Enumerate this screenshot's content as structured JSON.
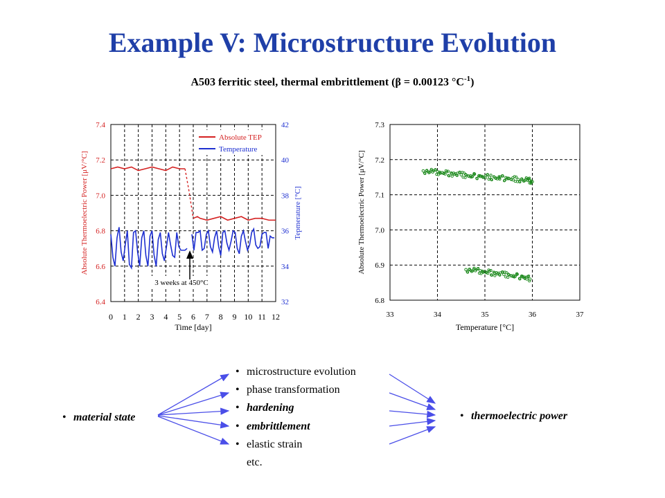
{
  "title": "Example V: Microstructure Evolution",
  "subtitle": "A503 ferritic steel, thermal embrittlement  (β = 0.00123 °C",
  "subtitle_sup": "-1",
  "subtitle_end": ")",
  "colors": {
    "title": "#1f3fa8",
    "tep": "#d42020",
    "temperature": "#1d2fd0",
    "scatter": "#1e8a1e",
    "arrows": "#4a4ee8"
  },
  "chart_data": [
    {
      "type": "line",
      "xlabel": "Time [day]",
      "ylabel": "Absolute Thermoelectric Power [μV/°C]",
      "y2label": "Tepmerature [°C]",
      "xlim": [
        0,
        12
      ],
      "ylim": [
        6.4,
        7.4
      ],
      "y2lim": [
        32,
        42
      ],
      "xticks": [
        "0",
        "1",
        "2",
        "3",
        "4",
        "5",
        "6",
        "7",
        "8",
        "9",
        "10",
        "11",
        "12"
      ],
      "yticks": [
        "6.4",
        "6.6",
        "6.8",
        "7.0",
        "7.2",
        "7.4"
      ],
      "y2ticks": [
        "32",
        "34",
        "36",
        "38",
        "40",
        "42"
      ],
      "grid": true,
      "legend_position": "top-right",
      "annotation": "3 weeks at 450°C",
      "series": [
        {
          "name": "Absolute TEP",
          "axis": "left",
          "x": [
            0,
            0.5,
            1,
            1.5,
            2,
            2.5,
            3,
            3.5,
            4,
            4.5,
            5,
            5.4,
            5.7,
            6.0,
            6.3,
            6.5,
            7,
            7.5,
            8,
            8.5,
            9,
            9.5,
            10,
            10.5,
            11,
            11.5,
            12
          ],
          "y": [
            7.15,
            7.16,
            7.15,
            7.16,
            7.14,
            7.15,
            7.16,
            7.15,
            7.14,
            7.16,
            7.15,
            7.15,
            7.02,
            6.87,
            6.88,
            6.87,
            6.86,
            6.87,
            6.88,
            6.86,
            6.87,
            6.88,
            6.86,
            6.87,
            6.87,
            6.86,
            6.86
          ]
        },
        {
          "name": "Temperature",
          "axis": "right",
          "x": [
            0,
            0.15,
            0.3,
            0.45,
            0.6,
            0.75,
            0.9,
            1.05,
            1.2,
            1.35,
            1.5,
            1.65,
            1.8,
            1.95,
            2.1,
            2.25,
            2.4,
            2.55,
            2.7,
            2.85,
            3.0,
            3.15,
            3.3,
            3.45,
            3.6,
            3.75,
            3.9,
            4.05,
            4.2,
            4.35,
            4.5,
            4.65,
            4.8,
            4.95,
            5.1,
            5.25,
            5.4,
            5.55,
            5.9,
            6.05,
            6.2,
            6.35,
            6.5,
            6.65,
            6.8,
            6.95,
            7.1,
            7.25,
            7.4,
            7.55,
            7.7,
            7.85,
            8.0,
            8.15,
            8.3,
            8.45,
            8.6,
            8.75,
            8.9,
            9.05,
            9.2,
            9.35,
            9.5,
            9.65,
            9.8,
            9.95,
            10.1,
            10.25,
            10.4,
            10.55,
            10.7,
            10.85,
            11.0,
            11.15,
            11.3,
            11.45,
            11.6,
            11.75,
            11.9
          ],
          "y": [
            35.8,
            34.5,
            34.0,
            35.6,
            36.2,
            34.8,
            34.3,
            35.2,
            36.0,
            34.1,
            33.9,
            35.9,
            36.0,
            34.8,
            34.0,
            35.6,
            36.0,
            34.6,
            34.0,
            35.7,
            36.0,
            34.6,
            34.0,
            35.5,
            35.9,
            34.7,
            34.3,
            35.1,
            35.9,
            35.2,
            34.6,
            34.5,
            35.9,
            35.1,
            34.9,
            34.9,
            34.9,
            35.0,
            35.8,
            34.9,
            35.9,
            35.9,
            36.0,
            34.9,
            35.0,
            35.8,
            36.0,
            35.1,
            34.8,
            35.6,
            36.0,
            35.1,
            34.6,
            35.9,
            36.0,
            35.3,
            34.9,
            35.4,
            36.0,
            35.9,
            35.0,
            34.7,
            35.7,
            36.0,
            35.4,
            34.9,
            35.2,
            35.9,
            36.1,
            35.2,
            35.0,
            35.1,
            35.8,
            35.9,
            35.9,
            35.0,
            35.7,
            35.6,
            35.6
          ]
        }
      ]
    },
    {
      "type": "scatter",
      "xlabel": "Temperature [°C]",
      "ylabel": "Absolute Thermoelectric Power [μV/°C]",
      "xlim": [
        33,
        37
      ],
      "ylim": [
        6.8,
        7.3
      ],
      "xticks": [
        "33",
        "34",
        "35",
        "36",
        "37"
      ],
      "yticks": [
        "6.8",
        "6.9",
        "7.0",
        "7.1",
        "7.2",
        "7.3"
      ],
      "grid": true,
      "series": [
        {
          "x": [
            33.7,
            33.9,
            34.1,
            34.3,
            34.5,
            34.7,
            34.9,
            35.1,
            35.3,
            35.5,
            35.7,
            35.9,
            36.0
          ],
          "y": [
            7.168,
            7.165,
            7.163,
            7.16,
            7.157,
            7.154,
            7.152,
            7.15,
            7.148,
            7.146,
            7.144,
            7.141,
            7.137
          ]
        },
        {
          "x": [
            34.6,
            34.8,
            35.0,
            35.2,
            35.4,
            35.6,
            35.8,
            35.95
          ],
          "y": [
            6.887,
            6.884,
            6.881,
            6.877,
            6.873,
            6.87,
            6.866,
            6.86
          ]
        }
      ]
    }
  ],
  "diagram": {
    "left_item": "material state",
    "middle_items": [
      "microstructure evolution",
      "phase transformation",
      "hardening",
      "embrittlement",
      "elastic strain",
      "etc."
    ],
    "right_item": "thermoelectric power"
  }
}
